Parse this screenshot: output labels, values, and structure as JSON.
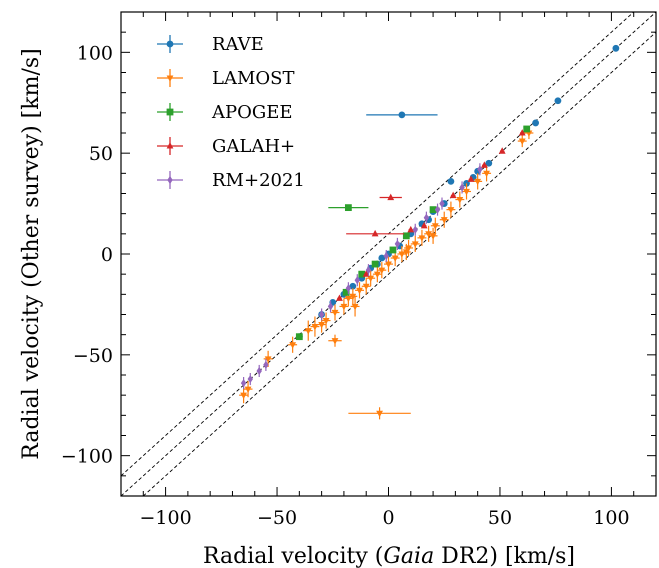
{
  "chart_data": {
    "type": "scatter",
    "xlabel": {
      "prefix": "Radial velocity (",
      "italic": "Gaia",
      "suffix": " DR2) [km/s]"
    },
    "ylabel": "Radial velocity (Other survey) [km/s]",
    "xlim": [
      -120,
      120
    ],
    "ylim": [
      -120,
      120
    ],
    "xticks": [
      -100,
      -50,
      0,
      50,
      100
    ],
    "yticks": [
      -100,
      -50,
      0,
      50,
      100
    ],
    "xtick_labels": [
      "−100",
      "−50",
      "0",
      "50",
      "100"
    ],
    "ytick_labels": [
      "−100",
      "−50",
      "0",
      "50",
      "100"
    ],
    "grid": false,
    "legend_position": "top-left",
    "reference_lines": [
      {
        "offset": 0,
        "style": "dashed"
      },
      {
        "offset": 10,
        "style": "dashed"
      },
      {
        "offset": -10,
        "style": "dashed"
      }
    ],
    "series": [
      {
        "name": "RAVE",
        "color": "#1f77b4",
        "marker": "circle",
        "points": [
          {
            "x": 102,
            "y": 102,
            "xerr": 1,
            "yerr": 1
          },
          {
            "x": 76,
            "y": 76,
            "xerr": 1,
            "yerr": 1
          },
          {
            "x": 66,
            "y": 65,
            "xerr": 1,
            "yerr": 1
          },
          {
            "x": 6,
            "y": 69,
            "xerr": 16,
            "yerr": 1
          },
          {
            "x": 28,
            "y": 36,
            "xerr": 1,
            "yerr": 1
          },
          {
            "x": 40,
            "y": 41,
            "xerr": 1,
            "yerr": 1
          },
          {
            "x": 35,
            "y": 35,
            "xerr": 1,
            "yerr": 1
          },
          {
            "x": 45,
            "y": 45,
            "xerr": 1,
            "yerr": 1
          },
          {
            "x": 25,
            "y": 25,
            "xerr": 1,
            "yerr": 1
          },
          {
            "x": 20,
            "y": 21,
            "xerr": 1,
            "yerr": 1
          },
          {
            "x": 15,
            "y": 15,
            "xerr": 1,
            "yerr": 1
          },
          {
            "x": 10,
            "y": 10,
            "xerr": 1,
            "yerr": 1
          },
          {
            "x": 5,
            "y": 4,
            "xerr": 1,
            "yerr": 1
          },
          {
            "x": 0,
            "y": 0,
            "xerr": 1,
            "yerr": 1
          },
          {
            "x": -3,
            "y": -2,
            "xerr": 1,
            "yerr": 1
          },
          {
            "x": -8,
            "y": -7,
            "xerr": 1,
            "yerr": 1
          },
          {
            "x": -12,
            "y": -12,
            "xerr": 1,
            "yerr": 1
          },
          {
            "x": -16,
            "y": -16,
            "xerr": 1,
            "yerr": 1
          },
          {
            "x": -20,
            "y": -20,
            "xerr": 1,
            "yerr": 1
          },
          {
            "x": -25,
            "y": -24,
            "xerr": 1,
            "yerr": 1
          },
          {
            "x": -30,
            "y": -30,
            "xerr": 1,
            "yerr": 1
          },
          {
            "x": -40,
            "y": -41,
            "xerr": 1,
            "yerr": 1
          },
          {
            "x": 38,
            "y": 38,
            "xerr": 1,
            "yerr": 1
          },
          {
            "x": 18,
            "y": 17,
            "xerr": 1,
            "yerr": 1
          },
          {
            "x": -5,
            "y": -5,
            "xerr": 1,
            "yerr": 1
          }
        ]
      },
      {
        "name": "LAMOST",
        "color": "#ff7f0e",
        "marker": "triangle-down",
        "points": [
          {
            "x": -4,
            "y": -79,
            "xerr": 14,
            "yerr": 3
          },
          {
            "x": -24,
            "y": -43,
            "xerr": 3,
            "yerr": 3
          },
          {
            "x": -54,
            "y": -52,
            "xerr": 2,
            "yerr": 4
          },
          {
            "x": -65,
            "y": -70,
            "xerr": 2,
            "yerr": 4
          },
          {
            "x": -63,
            "y": -67,
            "xerr": 2,
            "yerr": 4
          },
          {
            "x": -36,
            "y": -38,
            "xerr": 2,
            "yerr": 5
          },
          {
            "x": -33,
            "y": -36,
            "xerr": 2,
            "yerr": 5
          },
          {
            "x": -30,
            "y": -35,
            "xerr": 2,
            "yerr": 4
          },
          {
            "x": -28,
            "y": -33,
            "xerr": 2,
            "yerr": 4
          },
          {
            "x": -24,
            "y": -29,
            "xerr": 2,
            "yerr": 4
          },
          {
            "x": -20,
            "y": -26,
            "xerr": 2,
            "yerr": 4
          },
          {
            "x": -18,
            "y": -22,
            "xerr": 2,
            "yerr": 4
          },
          {
            "x": -16,
            "y": -21,
            "xerr": 2,
            "yerr": 4
          },
          {
            "x": -13,
            "y": -18,
            "xerr": 2,
            "yerr": 4
          },
          {
            "x": -10,
            "y": -16,
            "xerr": 2,
            "yerr": 4
          },
          {
            "x": -8,
            "y": -12,
            "xerr": 2,
            "yerr": 4
          },
          {
            "x": -5,
            "y": -10,
            "xerr": 2,
            "yerr": 4
          },
          {
            "x": -3,
            "y": -8,
            "xerr": 2,
            "yerr": 4
          },
          {
            "x": 0,
            "y": -5,
            "xerr": 2,
            "yerr": 4
          },
          {
            "x": 3,
            "y": -2,
            "xerr": 2,
            "yerr": 4
          },
          {
            "x": 6,
            "y": 0,
            "xerr": 2,
            "yerr": 4
          },
          {
            "x": 9,
            "y": 3,
            "xerr": 2,
            "yerr": 4
          },
          {
            "x": 12,
            "y": 5,
            "xerr": 2,
            "yerr": 4
          },
          {
            "x": 15,
            "y": 8,
            "xerr": 2,
            "yerr": 4
          },
          {
            "x": 18,
            "y": 10,
            "xerr": 2,
            "yerr": 4
          },
          {
            "x": 21,
            "y": 14,
            "xerr": 2,
            "yerr": 4
          },
          {
            "x": 25,
            "y": 17,
            "xerr": 2,
            "yerr": 4
          },
          {
            "x": 28,
            "y": 22,
            "xerr": 2,
            "yerr": 4
          },
          {
            "x": 32,
            "y": 27,
            "xerr": 2,
            "yerr": 4
          },
          {
            "x": 35,
            "y": 31,
            "xerr": 2,
            "yerr": 4
          },
          {
            "x": 40,
            "y": 36,
            "xerr": 2,
            "yerr": 4
          },
          {
            "x": 44,
            "y": 40,
            "xerr": 2,
            "yerr": 4
          },
          {
            "x": 60,
            "y": 56,
            "xerr": 2,
            "yerr": 3
          },
          {
            "x": 63,
            "y": 60,
            "xerr": 2,
            "yerr": 3
          },
          {
            "x": -43,
            "y": -45,
            "xerr": 2,
            "yerr": 4
          },
          {
            "x": 20,
            "y": 9,
            "xerr": 2,
            "yerr": 4
          },
          {
            "x": 8,
            "y": 1,
            "xerr": 2,
            "yerr": 4
          },
          {
            "x": -15,
            "y": -26,
            "xerr": 2,
            "yerr": 5
          }
        ]
      },
      {
        "name": "APOGEE",
        "color": "#2ca02c",
        "marker": "square",
        "points": [
          {
            "x": -18,
            "y": 23,
            "xerr": 9,
            "yerr": 1
          },
          {
            "x": -40,
            "y": -41,
            "xerr": 1,
            "yerr": 1
          },
          {
            "x": -19,
            "y": -19,
            "xerr": 1,
            "yerr": 1
          },
          {
            "x": -12,
            "y": -10,
            "xerr": 1,
            "yerr": 1
          },
          {
            "x": -6,
            "y": -5,
            "xerr": 1,
            "yerr": 1
          },
          {
            "x": 2,
            "y": 2,
            "xerr": 1,
            "yerr": 1
          },
          {
            "x": 8,
            "y": 9,
            "xerr": 1,
            "yerr": 1
          },
          {
            "x": 20,
            "y": 22,
            "xerr": 1,
            "yerr": 1
          },
          {
            "x": 62,
            "y": 62,
            "xerr": 1,
            "yerr": 1
          }
        ]
      },
      {
        "name": "GALAH+",
        "color": "#d62728",
        "marker": "triangle-up",
        "points": [
          {
            "x": 1,
            "y": 28,
            "xerr": 5,
            "yerr": 1
          },
          {
            "x": -6,
            "y": 10,
            "xerr": 13,
            "yerr": 1
          },
          {
            "x": 51,
            "y": 51,
            "xerr": 1,
            "yerr": 1
          },
          {
            "x": 43,
            "y": 44,
            "xerr": 1,
            "yerr": 1
          },
          {
            "x": 37,
            "y": 37,
            "xerr": 1,
            "yerr": 1
          },
          {
            "x": 29,
            "y": 29,
            "xerr": 1,
            "yerr": 1
          },
          {
            "x": 16,
            "y": 14,
            "xerr": 1,
            "yerr": 1
          },
          {
            "x": 10,
            "y": 12,
            "xerr": 1,
            "yerr": 1
          },
          {
            "x": -10,
            "y": -10,
            "xerr": 1,
            "yerr": 1
          },
          {
            "x": -22,
            "y": -22,
            "xerr": 1,
            "yerr": 1
          },
          {
            "x": 60,
            "y": 60,
            "xerr": 1,
            "yerr": 1
          }
        ]
      },
      {
        "name": "RM+2021",
        "color": "#9467bd",
        "marker": "diamond",
        "points": [
          {
            "x": -65,
            "y": -64,
            "xerr": 1,
            "yerr": 3
          },
          {
            "x": -62,
            "y": -62,
            "xerr": 1,
            "yerr": 3
          },
          {
            "x": -58,
            "y": -58,
            "xerr": 1,
            "yerr": 3
          },
          {
            "x": -55,
            "y": -55,
            "xerr": 1,
            "yerr": 3
          },
          {
            "x": -30,
            "y": -30,
            "xerr": 1,
            "yerr": 3
          },
          {
            "x": -26,
            "y": -26,
            "xerr": 1,
            "yerr": 3
          },
          {
            "x": -18,
            "y": -17,
            "xerr": 1,
            "yerr": 3
          },
          {
            "x": -14,
            "y": -13,
            "xerr": 1,
            "yerr": 3
          },
          {
            "x": -9,
            "y": -8,
            "xerr": 1,
            "yerr": 3
          },
          {
            "x": -1,
            "y": -1,
            "xerr": 1,
            "yerr": 3
          },
          {
            "x": 4,
            "y": 5,
            "xerr": 1,
            "yerr": 3
          },
          {
            "x": 12,
            "y": 12,
            "xerr": 1,
            "yerr": 3
          },
          {
            "x": 17,
            "y": 18,
            "xerr": 1,
            "yerr": 3
          },
          {
            "x": 22,
            "y": 22,
            "xerr": 1,
            "yerr": 3
          },
          {
            "x": 24,
            "y": 25,
            "xerr": 1,
            "yerr": 3
          },
          {
            "x": 33,
            "y": 33,
            "xerr": 1,
            "yerr": 3
          },
          {
            "x": 41,
            "y": 42,
            "xerr": 1,
            "yerr": 3
          }
        ]
      }
    ]
  }
}
